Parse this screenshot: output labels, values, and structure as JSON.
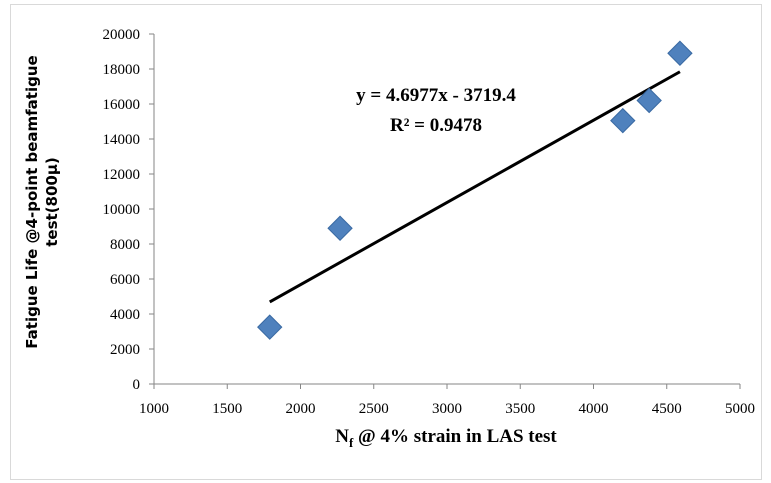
{
  "chart_data": {
    "type": "scatter",
    "x": [
      1790,
      2270,
      4200,
      4380,
      4590
    ],
    "y": [
      3250,
      8900,
      15050,
      16200,
      18900
    ],
    "xlim": [
      1000,
      5000
    ],
    "ylim": [
      0,
      20000
    ],
    "xticks": [
      1000,
      1500,
      2000,
      2500,
      3000,
      3500,
      4000,
      4500,
      5000
    ],
    "yticks": [
      0,
      2000,
      4000,
      6000,
      8000,
      10000,
      12000,
      14000,
      16000,
      18000,
      20000
    ],
    "xlabel_main": "N",
    "xlabel_sub": "f",
    "xlabel_rest": " @ 4% strain in LAS test",
    "ylabel_line1": "Fatigue Life @4-point beamfatigue",
    "ylabel_line2": "test(800μ)",
    "trendline": {
      "slope": 4.6977,
      "intercept": -3719.4,
      "x_range": [
        1790,
        4590
      ],
      "equation": "y = 4.6977x - 3719.4",
      "r_squared": "R² = 0.9478"
    },
    "marker_color": "#4f81bd",
    "marker_edge": "#3a6aa3",
    "line_color": "#000000",
    "grid": false
  }
}
